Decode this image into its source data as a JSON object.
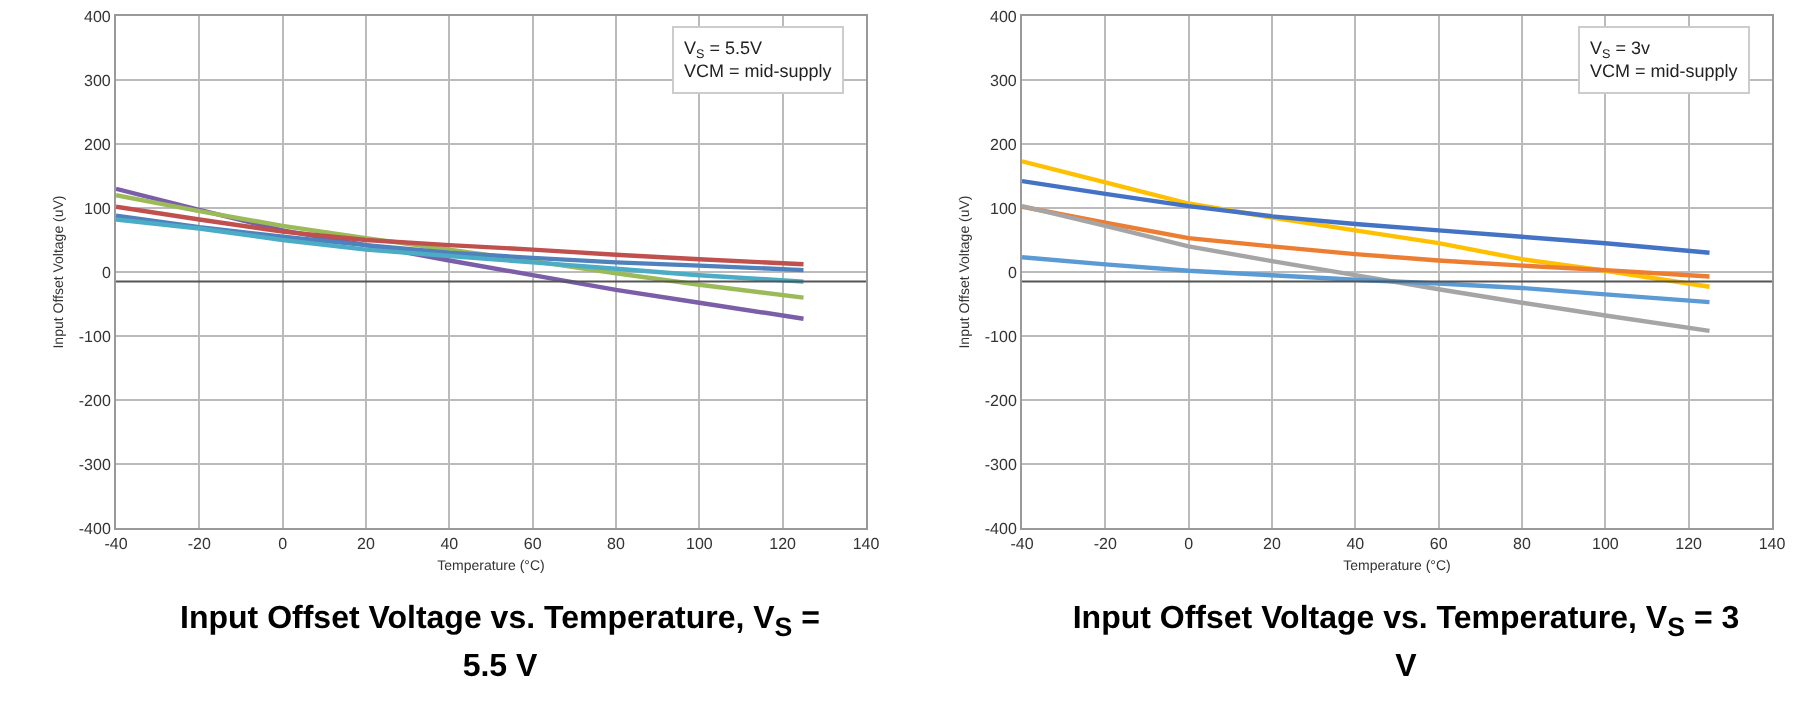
{
  "chart_data": [
    {
      "type": "line",
      "title": "Input Offset Voltage vs. Temperature, V$_{S}$ = 5.5 V",
      "xlabel": "Temperature (°C)",
      "ylabel": "Input Offset Voltage (uV)",
      "annotations": [
        "V$_{S}$ = 5.5V",
        "VCM = mid-supply"
      ],
      "x": [
        -40,
        -20,
        0,
        20,
        40,
        60,
        80,
        100,
        125
      ],
      "series": [
        {
          "color": "#7b5ea7",
          "values": [
            130,
            97,
            65,
            42,
            18,
            -5,
            -28,
            -48,
            -73
          ]
        },
        {
          "color": "#9bbb59",
          "values": [
            120,
            95,
            72,
            53,
            35,
            17,
            -2,
            -20,
            -40
          ]
        },
        {
          "color": "#c0504d",
          "values": [
            102,
            82,
            63,
            50,
            42,
            35,
            27,
            20,
            12
          ]
        },
        {
          "color": "#4f81bd",
          "values": [
            88,
            70,
            55,
            42,
            30,
            22,
            15,
            10,
            3
          ]
        },
        {
          "color": "#4bacc6",
          "values": [
            82,
            68,
            50,
            35,
            25,
            15,
            5,
            -5,
            -15
          ]
        }
      ],
      "xlim": [
        -40,
        140
      ],
      "xticks": [
        -40,
        -20,
        0,
        20,
        40,
        60,
        80,
        100,
        120,
        140
      ],
      "ylim": [
        -400,
        400
      ],
      "yticks": [
        -400,
        -300,
        -200,
        -100,
        0,
        100,
        200,
        300,
        400
      ],
      "ref_lines": [
        {
          "axis": "y",
          "value": -15,
          "color": "#555555"
        }
      ],
      "grid": true,
      "marker": "none",
      "line_style": "solid"
    },
    {
      "type": "line",
      "title": "Input Offset Voltage vs. Temperature, V$_{S}$ = 3 V",
      "xlabel": "Temperature (°C)",
      "ylabel": "Input Offset Voltage (uV)",
      "annotations": [
        "V$_{S}$ = 3v",
        "VCM = mid-supply"
      ],
      "x": [
        -40,
        -20,
        0,
        20,
        40,
        60,
        80,
        100,
        125
      ],
      "series": [
        {
          "color": "#ffc000",
          "values": [
            173,
            140,
            107,
            85,
            65,
            45,
            20,
            2,
            -23
          ]
        },
        {
          "color": "#4472c4",
          "values": [
            142,
            122,
            103,
            87,
            75,
            65,
            55,
            45,
            30
          ]
        },
        {
          "color": "#ed7d31",
          "values": [
            102,
            77,
            53,
            40,
            28,
            18,
            10,
            3,
            -7
          ]
        },
        {
          "color": "#a5a5a5",
          "values": [
            103,
            72,
            40,
            17,
            -5,
            -27,
            -48,
            -68,
            -92
          ]
        },
        {
          "color": "#5b9bd5",
          "values": [
            23,
            12,
            2,
            -5,
            -12,
            -18,
            -25,
            -35,
            -47
          ]
        }
      ],
      "xlim": [
        -40,
        140
      ],
      "xticks": [
        -40,
        -20,
        0,
        20,
        40,
        60,
        80,
        100,
        120,
        140
      ],
      "ylim": [
        -400,
        400
      ],
      "yticks": [
        -400,
        -300,
        -200,
        -100,
        0,
        100,
        200,
        300,
        400
      ],
      "ref_lines": [
        {
          "axis": "y",
          "value": -15,
          "color": "#555555"
        }
      ],
      "grid": true,
      "marker": "none",
      "line_style": "solid"
    }
  ]
}
